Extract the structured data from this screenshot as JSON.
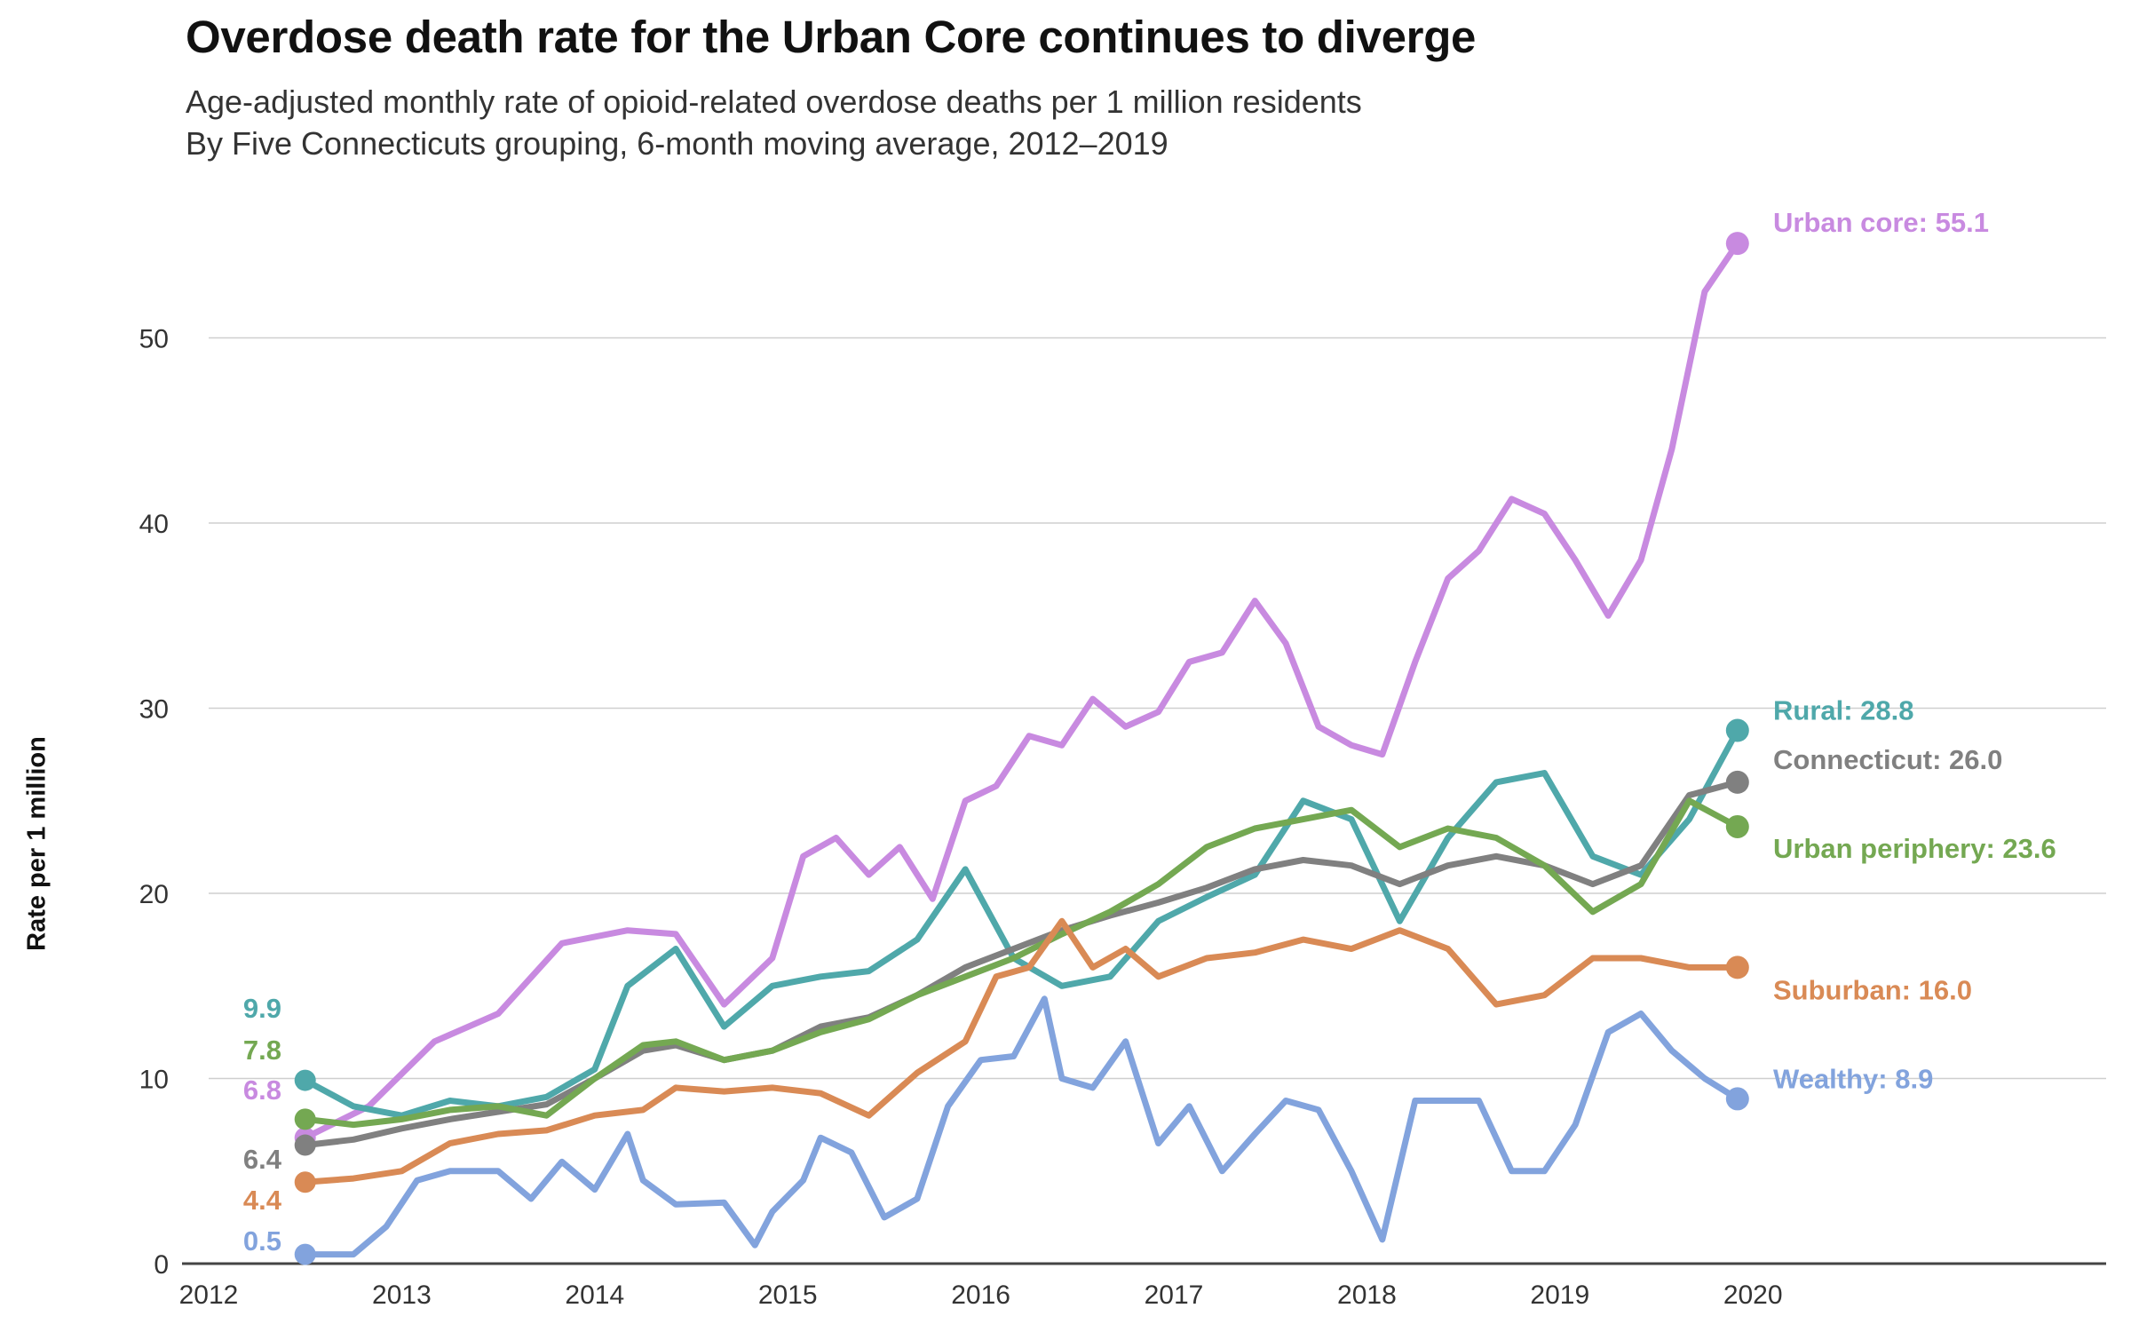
{
  "chart_data": {
    "type": "line",
    "title": "Overdose death rate for the Urban Core continues to diverge",
    "subtitle_lines": [
      "Age-adjusted monthly rate of opioid-related overdose deaths per 1 million residents",
      "By Five Connecticuts grouping, 6-month moving average, 2012–2019"
    ],
    "ylabel": "Rate per 1 million",
    "xlabel": "",
    "ylim": [
      0,
      57
    ],
    "xlim": [
      2012,
      2021
    ],
    "y_ticks": [
      0,
      10,
      20,
      30,
      40,
      50
    ],
    "x_ticks": [
      "2012",
      "2013",
      "2014",
      "2015",
      "2016",
      "2017",
      "2018",
      "2019",
      "2020"
    ],
    "grid": "horizontal",
    "series": [
      {
        "name": "Urban core",
        "end_label": "Urban core: 55.1",
        "start_label": "6.8",
        "color": "#c88ae0",
        "x": [
          2012.5,
          2012.83,
          2013.17,
          2013.5,
          2013.83,
          2014.17,
          2014.42,
          2014.67,
          2014.92,
          2015.08,
          2015.25,
          2015.42,
          2015.58,
          2015.75,
          2015.92,
          2016.08,
          2016.25,
          2016.42,
          2016.58,
          2016.75,
          2016.92,
          2017.08,
          2017.25,
          2017.42,
          2017.58,
          2017.75,
          2017.92,
          2018.08,
          2018.25,
          2018.42,
          2018.58,
          2018.75,
          2018.92,
          2019.08,
          2019.25,
          2019.42,
          2019.58,
          2019.75,
          2019.92
        ],
        "values": [
          6.8,
          8.5,
          12.0,
          13.5,
          17.3,
          18.0,
          17.8,
          14.0,
          16.5,
          22.0,
          23.0,
          21.0,
          22.5,
          19.7,
          25.0,
          25.8,
          28.5,
          28.0,
          30.5,
          29.0,
          29.8,
          32.5,
          33.0,
          35.8,
          33.5,
          29.0,
          28.0,
          27.5,
          32.5,
          37.0,
          38.5,
          41.3,
          40.5,
          38.0,
          35.0,
          38.0,
          44.0,
          52.5,
          55.1
        ]
      },
      {
        "name": "Rural",
        "end_label": "Rural: 28.8",
        "start_label": "9.9",
        "color": "#4fa8aa",
        "x": [
          2012.5,
          2012.75,
          2013.0,
          2013.25,
          2013.5,
          2013.75,
          2014.0,
          2014.17,
          2014.42,
          2014.67,
          2014.92,
          2015.17,
          2015.42,
          2015.67,
          2015.92,
          2016.17,
          2016.42,
          2016.67,
          2016.92,
          2017.17,
          2017.42,
          2017.67,
          2017.92,
          2018.17,
          2018.42,
          2018.67,
          2018.92,
          2019.17,
          2019.42,
          2019.67,
          2019.92
        ],
        "values": [
          9.9,
          8.5,
          8.0,
          8.8,
          8.5,
          9.0,
          10.5,
          15.0,
          17.0,
          12.8,
          15.0,
          15.5,
          15.8,
          17.5,
          21.3,
          16.5,
          15.0,
          15.5,
          18.5,
          19.8,
          21.0,
          25.0,
          24.0,
          18.5,
          23.0,
          26.0,
          26.5,
          22.0,
          21.0,
          24.0,
          28.8
        ]
      },
      {
        "name": "Connecticut",
        "end_label": "Connecticut: 26.0",
        "start_label": "6.4",
        "color": "#808080",
        "x": [
          2012.5,
          2012.75,
          2013.0,
          2013.25,
          2013.5,
          2013.75,
          2014.0,
          2014.25,
          2014.42,
          2014.67,
          2014.92,
          2015.17,
          2015.42,
          2015.67,
          2015.92,
          2016.17,
          2016.42,
          2016.67,
          2016.92,
          2017.17,
          2017.42,
          2017.67,
          2017.92,
          2018.17,
          2018.42,
          2018.67,
          2018.92,
          2019.17,
          2019.42,
          2019.67,
          2019.92
        ],
        "values": [
          6.4,
          6.7,
          7.3,
          7.8,
          8.2,
          8.6,
          10.0,
          11.5,
          11.8,
          11.0,
          11.5,
          12.8,
          13.3,
          14.5,
          16.0,
          17.0,
          18.0,
          18.8,
          19.5,
          20.3,
          21.3,
          21.8,
          21.5,
          20.5,
          21.5,
          22.0,
          21.5,
          20.5,
          21.5,
          25.3,
          26.0
        ]
      },
      {
        "name": "Urban periphery",
        "end_label": "Urban periphery: 23.6",
        "start_label": "7.8",
        "color": "#74a852",
        "x": [
          2012.5,
          2012.75,
          2013.0,
          2013.25,
          2013.5,
          2013.75,
          2014.0,
          2014.25,
          2014.42,
          2014.67,
          2014.92,
          2015.17,
          2015.42,
          2015.67,
          2015.92,
          2016.17,
          2016.42,
          2016.67,
          2016.92,
          2017.17,
          2017.42,
          2017.67,
          2017.92,
          2018.17,
          2018.42,
          2018.67,
          2018.92,
          2019.17,
          2019.42,
          2019.67,
          2019.92
        ],
        "values": [
          7.8,
          7.5,
          7.8,
          8.3,
          8.5,
          8.0,
          10.0,
          11.8,
          12.0,
          11.0,
          11.5,
          12.5,
          13.2,
          14.5,
          15.5,
          16.5,
          17.8,
          19.0,
          20.5,
          22.5,
          23.5,
          24.0,
          24.5,
          22.5,
          23.5,
          23.0,
          21.5,
          19.0,
          20.5,
          25.0,
          23.6
        ]
      },
      {
        "name": "Suburban",
        "end_label": "Suburban: 16.0",
        "start_label": "4.4",
        "color": "#d98a55",
        "x": [
          2012.5,
          2012.75,
          2013.0,
          2013.25,
          2013.5,
          2013.75,
          2014.0,
          2014.25,
          2014.42,
          2014.67,
          2014.92,
          2015.17,
          2015.42,
          2015.67,
          2015.92,
          2016.08,
          2016.25,
          2016.42,
          2016.58,
          2016.75,
          2016.92,
          2017.17,
          2017.42,
          2017.67,
          2017.92,
          2018.17,
          2018.42,
          2018.67,
          2018.92,
          2019.17,
          2019.42,
          2019.67,
          2019.92
        ],
        "values": [
          4.4,
          4.6,
          5.0,
          6.5,
          7.0,
          7.2,
          8.0,
          8.3,
          9.5,
          9.3,
          9.5,
          9.2,
          8.0,
          10.3,
          12.0,
          15.5,
          16.0,
          18.5,
          16.0,
          17.0,
          15.5,
          16.5,
          16.8,
          17.5,
          17.0,
          18.0,
          17.0,
          14.0,
          14.5,
          16.5,
          16.5,
          16.0,
          16.0
        ]
      },
      {
        "name": "Wealthy",
        "end_label": "Wealthy:  8.9",
        "start_label": "0.5",
        "color": "#82a3dd",
        "x": [
          2012.5,
          2012.75,
          2012.92,
          2013.08,
          2013.25,
          2013.5,
          2013.67,
          2013.83,
          2014.0,
          2014.17,
          2014.25,
          2014.42,
          2014.67,
          2014.83,
          2014.92,
          2015.08,
          2015.17,
          2015.33,
          2015.5,
          2015.67,
          2015.83,
          2016.0,
          2016.17,
          2016.33,
          2016.42,
          2016.58,
          2016.75,
          2016.92,
          2017.08,
          2017.25,
          2017.42,
          2017.58,
          2017.75,
          2017.92,
          2018.08,
          2018.25,
          2018.42,
          2018.58,
          2018.75,
          2018.92,
          2019.08,
          2019.25,
          2019.42,
          2019.58,
          2019.75,
          2019.92
        ],
        "values": [
          0.5,
          0.5,
          2.0,
          4.5,
          5.0,
          5.0,
          3.5,
          5.5,
          4.0,
          7.0,
          4.5,
          3.2,
          3.3,
          1.0,
          2.8,
          4.5,
          6.8,
          6.0,
          2.5,
          3.5,
          8.5,
          11.0,
          11.2,
          14.3,
          10.0,
          9.5,
          12.0,
          6.5,
          8.5,
          5.0,
          7.0,
          8.8,
          8.3,
          5.0,
          1.3,
          8.8,
          8.8,
          8.8,
          5.0,
          5.0,
          7.5,
          12.5,
          13.5,
          11.5,
          10.0,
          8.9
        ]
      }
    ]
  }
}
